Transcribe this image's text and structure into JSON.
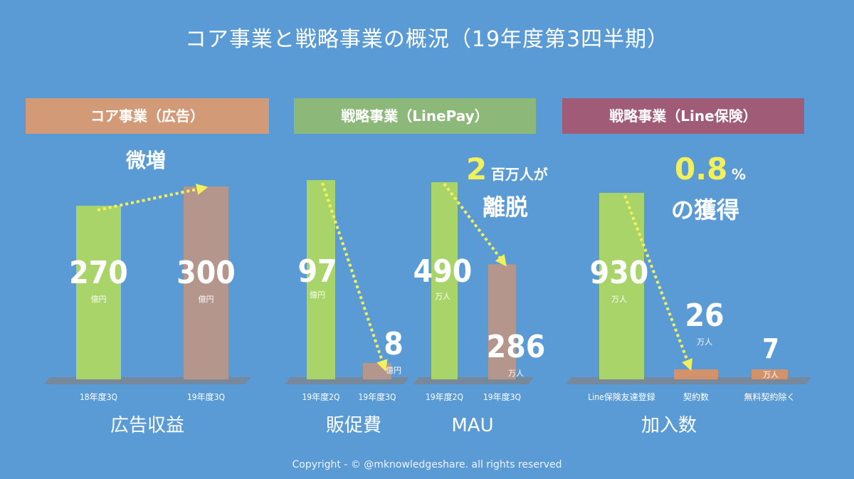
{
  "title": "コア事業と戦略事業の概況（19年度第3四半期）",
  "sections": {
    "core": {
      "header": "コア事業（広告）",
      "color": "#d29a76"
    },
    "linepay": {
      "header": "戦略事業（LinePay）",
      "color": "#8cb87a"
    },
    "insurance": {
      "header": "戦略事業（Line保険）",
      "color": "#a05c76"
    }
  },
  "annotations": {
    "core_note": "微増",
    "mau_big": "2",
    "mau_small": "百万人が",
    "mau_line2": "離脱",
    "ins_big": "0.8",
    "ins_pct": "%",
    "ins_line2": "の獲得"
  },
  "copyright": "Copyright - © @mknowledgeshare. all rights reserved",
  "colors": {
    "background": "#5a9bd5",
    "bar_green": "#a9d46a",
    "bar_brown": "#b4968c",
    "bar_orange": "#d4926a",
    "arrow": "#f4f05a",
    "floor": "#7b8590"
  },
  "chart_data": [
    {
      "type": "bar",
      "title": "広告収益",
      "categories": [
        "18年度3Q",
        "19年度3Q"
      ],
      "values": [
        270,
        300
      ],
      "unit": "億円",
      "value_labels": [
        "270",
        "300"
      ],
      "arrow": "up"
    },
    {
      "type": "bar",
      "title": "販促費",
      "categories": [
        "19年度2Q",
        "19年度3Q"
      ],
      "values": [
        97,
        8
      ],
      "unit": "億円",
      "value_labels": [
        "97",
        "8"
      ],
      "arrow": "down"
    },
    {
      "type": "bar",
      "title": "MAU",
      "categories": [
        "19年度2Q",
        "19年度3Q"
      ],
      "values": [
        490,
        286
      ],
      "unit": "万人",
      "value_labels": [
        "490",
        "286"
      ],
      "arrow": "down"
    },
    {
      "type": "bar",
      "title": "加入数",
      "categories": [
        "Line保険友達登録",
        "契約数",
        "無料契約除く"
      ],
      "values": [
        930,
        26,
        7
      ],
      "unit": "万人",
      "value_labels": [
        "930",
        "26",
        "7"
      ],
      "arrow": "down"
    }
  ]
}
